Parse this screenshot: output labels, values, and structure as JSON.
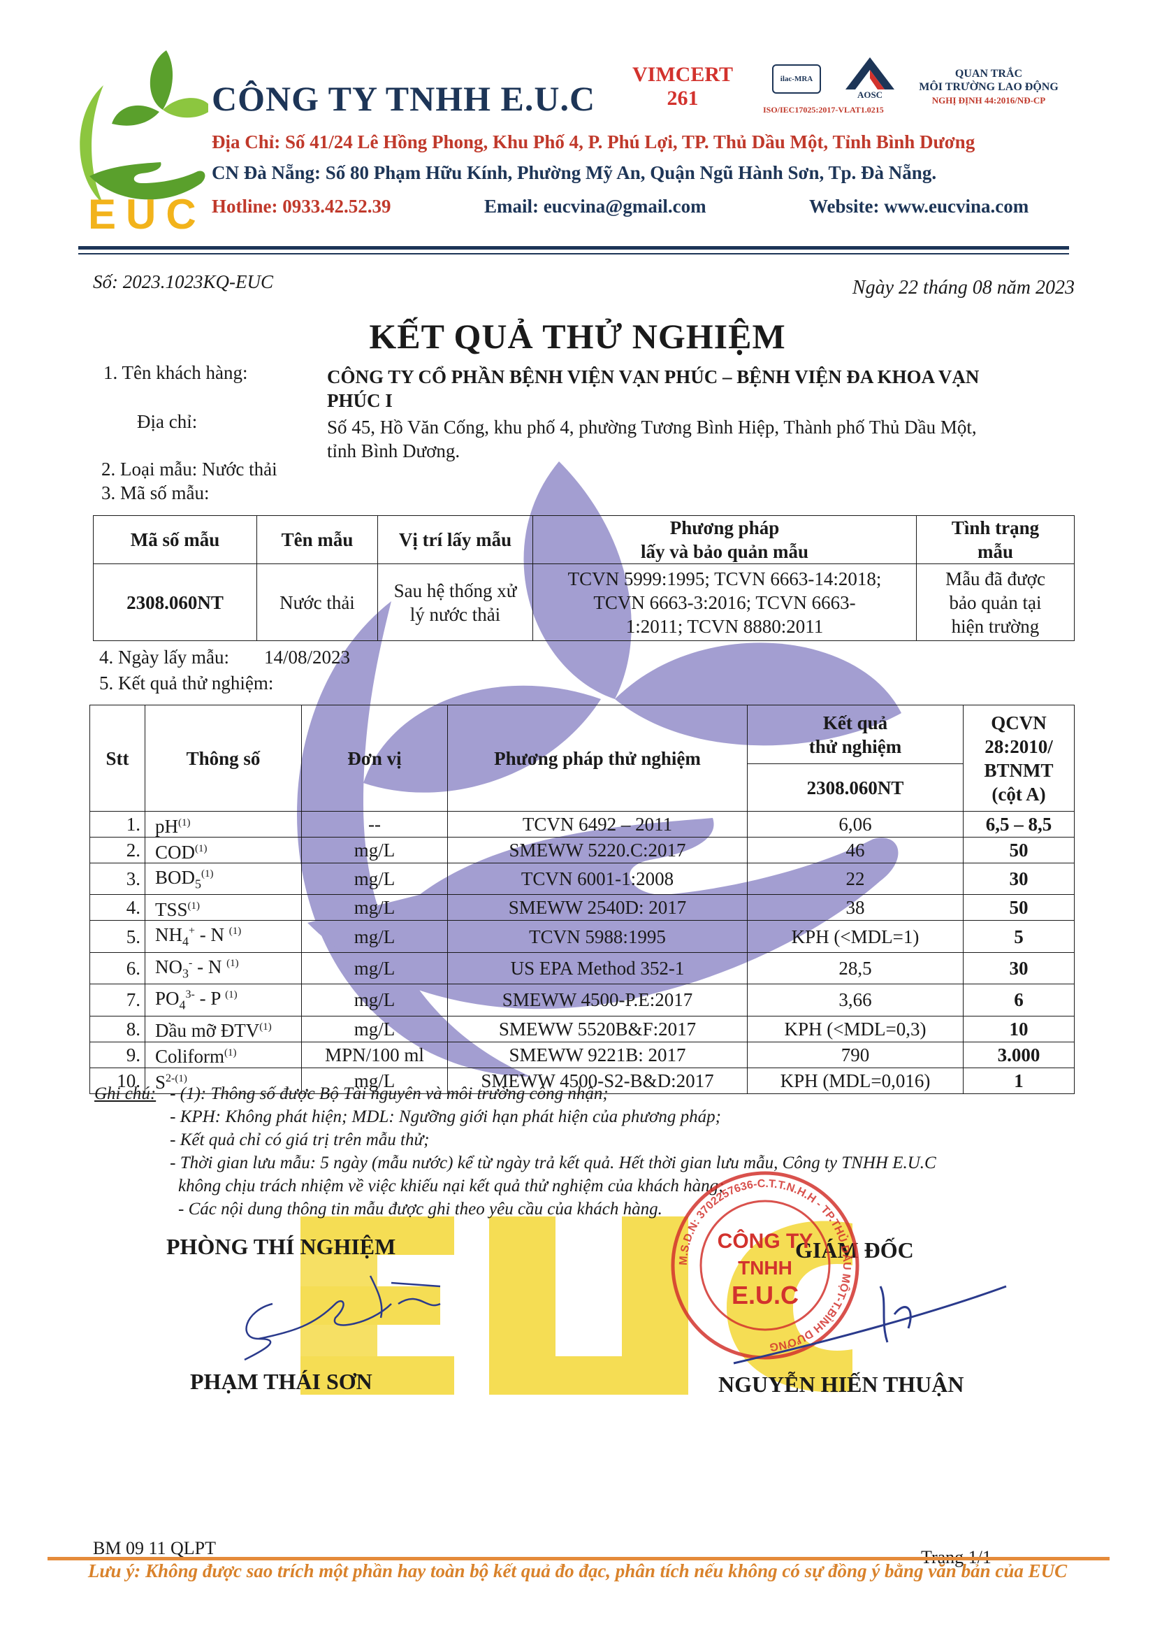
{
  "header": {
    "logo_text": "EUC",
    "company_name": "CÔNG TY TNHH E.U.C",
    "address": "Địa Chỉ: Số 41/24 Lê Hồng Phong, Khu Phố 4, P. Phú Lợi, TP. Thủ Dầu Một, Tỉnh Bình Dương",
    "branch": "CN Đà Nẵng: Số 80 Phạm Hữu Kính, Phường Mỹ An, Quận Ngũ Hành Sơn, Tp. Đà Nẵng.",
    "hotline": "Hotline: 0933.42.52.39",
    "email": "Email: eucvina@gmail.com",
    "website": "Website: www.eucvina.com",
    "vimcert_line1": "VIMCERT",
    "vimcert_line2": "261",
    "ilac_text": "ilac-MRA",
    "aosc_text": "AOSC",
    "iso_text": "ISO/IEC17025:2017-VLAT1.0215",
    "quan_trac_line1": "QUAN TRẮC",
    "quan_trac_line2": "MÔI TRƯỜNG LAO ĐỘNG",
    "quan_trac_line3": "NGHỊ ĐỊNH 44:2016/NĐ-CP"
  },
  "doc": {
    "number": "Số: 2023.1023KQ-EUC",
    "date": "Ngày 22 tháng 08 năm 2023",
    "title": "KẾT QUẢ THỬ NGHIỆM"
  },
  "info": {
    "item1_label": "1.  Tên khách hàng:",
    "customer_line1": "CÔNG TY CỔ PHẦN BỆNH VIỆN VẠN PHÚC – BỆNH VIỆN ĐA KHOA VẠN",
    "customer_line2": "PHÚC I",
    "address_label": "Địa chỉ:",
    "address_line1": "Số 45, Hồ Văn Cống, khu phố 4, phường Tương Bình Hiệp, Thành phố Thủ Dầu Một,",
    "address_line2": "tỉnh Bình Dương.",
    "item2": "2.  Loại mẫu: Nước thải",
    "item3": "3.  Mã số mẫu:",
    "item4_label": "4.  Ngày lấy mẫu:",
    "item4_value": "14/08/2023",
    "item5": "5.  Kết quả thử nghiệm:"
  },
  "sample_table": {
    "headers": [
      "Mã số mẫu",
      "Tên mẫu",
      "Vị trí lấy mẫu",
      "Phương pháp",
      "lấy và bảo quản mẫu",
      "Tình trạng",
      "mẫu"
    ],
    "row": {
      "code": "2308.060NT",
      "name": "Nước thải",
      "location_l1": "Sau hệ thống xử",
      "location_l2": "lý nước thải",
      "method_l1": "TCVN 5999:1995; TCVN 6663-14:2018;",
      "method_l2": "TCVN 6663-3:2016; TCVN 6663-",
      "method_l3": "1:2011; TCVN 8880:2011",
      "status_l1": "Mẫu đã được",
      "status_l2": "bảo quản tại",
      "status_l3": "hiện trường"
    }
  },
  "result_table": {
    "headers": {
      "stt": "Stt",
      "param": "Thông số",
      "unit": "Đơn vị",
      "method": "Phương pháp thử nghiệm",
      "result_l1": "Kết quả",
      "result_l2": "thử nghiệm",
      "sample_code": "2308.060NT",
      "std_l1": "QCVN",
      "std_l2": "28:2010/",
      "std_l3": "BTNMT",
      "std_l4": "(cột A)"
    },
    "rows": [
      {
        "stt": "1.",
        "param": "pH",
        "sub": "",
        "sup": "",
        "note": "(1)",
        "tail": "",
        "unit": "--",
        "method": "TCVN 6492 – 2011",
        "result": "6,06",
        "limit": "6,5 – 8,5"
      },
      {
        "stt": "2.",
        "param": "COD",
        "sub": "",
        "sup": "",
        "note": "(1)",
        "tail": "",
        "unit": "mg/L",
        "method": "SMEWW 5220.C:2017",
        "result": "46",
        "limit": "50"
      },
      {
        "stt": "3.",
        "param": "BOD",
        "sub": "5",
        "sup": "",
        "note": "(1)",
        "tail": "",
        "unit": "mg/L",
        "method": "TCVN 6001-1:2008",
        "result": "22",
        "limit": "30"
      },
      {
        "stt": "4.",
        "param": "TSS",
        "sub": "",
        "sup": "",
        "note": "(1)",
        "tail": "",
        "unit": "mg/L",
        "method": "SMEWW 2540D: 2017",
        "result": "38",
        "limit": "50"
      },
      {
        "stt": "5.",
        "param": "NH",
        "sub": "4",
        "sup": "+",
        "note": "(1)",
        "tail": " - N ",
        "unit": "mg/L",
        "method": "TCVN 5988:1995",
        "result": "KPH (<MDL=1)",
        "limit": "5"
      },
      {
        "stt": "6.",
        "param": "NO",
        "sub": "3",
        "sup": "-",
        "note": "(1)",
        "tail": " - N ",
        "unit": "mg/L",
        "method": "US EPA Method 352-1",
        "result": "28,5",
        "limit": "30"
      },
      {
        "stt": "7.",
        "param": "PO",
        "sub": "4",
        "sup": "3-",
        "note": "(1)",
        "tail": " - P ",
        "unit": "mg/L",
        "method": "SMEWW 4500-P.E:2017",
        "result": "3,66",
        "limit": "6"
      },
      {
        "stt": "8.",
        "param": "Dầu mỡ ĐTV",
        "sub": "",
        "sup": "",
        "note": "(1)",
        "tail": "",
        "unit": "mg/L",
        "method": "SMEWW 5520B&F:2017",
        "result": "KPH (<MDL=0,3)",
        "limit": "10"
      },
      {
        "stt": "9.",
        "param": "Coliform",
        "sub": "",
        "sup": "",
        "note": "(1)",
        "tail": "",
        "unit": "MPN/100 ml",
        "method": "SMEWW 9221B: 2017",
        "result": "790",
        "limit": "3.000"
      },
      {
        "stt": "10.",
        "param": "S",
        "sub": "",
        "sup": "2-",
        "note": "(1)",
        "tail": "",
        "unit": "mg/L",
        "method": "SMEWW 4500-S2-B&D:2017",
        "result": "KPH (MDL=0,016)",
        "limit": "1"
      }
    ]
  },
  "notes": {
    "label": "Ghi chú:",
    "lines": [
      "- (1): Thông số được Bộ Tài nguyên và môi trường công nhận;",
      "- KPH: Không phát hiện; MDL: Ngưỡng giới hạn phát hiện của phương pháp;",
      "- Kết quả chỉ có giá trị trên mẫu thử;",
      "- Thời gian lưu mẫu: 5 ngày (mẫu nước) kể từ ngày trả kết quả. Hết thời gian lưu mẫu, Công ty TNHH E.U.C",
      "không chịu trách nhiệm về việc khiếu nại kết quả thử nghiệm của khách hàng;",
      "- Các nội dung thông tin mẫu được ghi theo yêu cầu của khách hàng."
    ]
  },
  "signatures": {
    "lab_title": "PHÒNG THÍ NGHIỆM",
    "lab_name": "PHẠM THÁI SƠN",
    "director_title": "GIÁM ĐỐC",
    "director_name": "NGUYỄN HIẾN THUẬN",
    "stamp_line1": "CÔNG TY",
    "stamp_line2": "TNHH",
    "stamp_line3": "E.U.C",
    "stamp_ring": "M.S.D.N: 3702257636-C.T.T.N.H.H - TP.THỦ DẦU MỘT-T.BÌNH DƯƠNG"
  },
  "footer": {
    "form_code": "BM 09 11 QLPT",
    "page": "Trang 1/1",
    "note": "Lưu ý: Không được sao trích một phần hay toàn bộ kết quả đo đạc, phân tích nếu không có sự đồng ý bằng văn bản của EUC"
  },
  "colors": {
    "brand_navy": "#1d3557",
    "brand_red": "#c0392b",
    "brand_green": "#5aa02c",
    "brand_yellow": "#f2d21b",
    "footer_orange": "#d9822b",
    "watermark_purple": "#6b63b5"
  }
}
